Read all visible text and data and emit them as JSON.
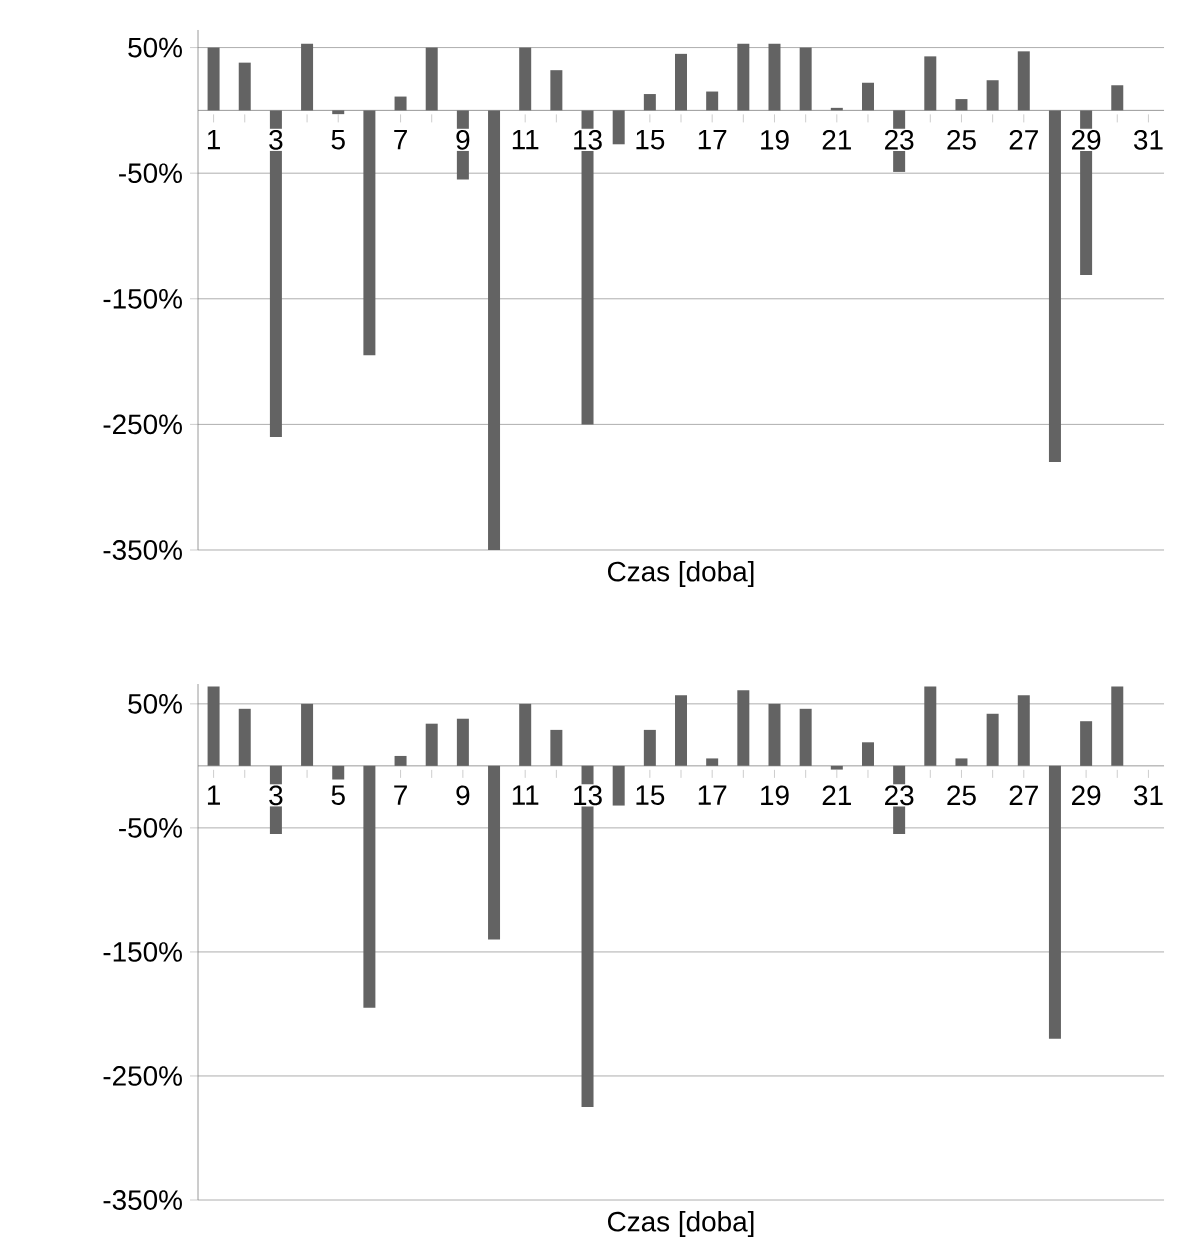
{
  "chart_data": [
    {
      "type": "bar",
      "xlabel": "Czas [doba]",
      "categories": [
        "1",
        null,
        "3",
        null,
        "5",
        null,
        "7",
        null,
        "9",
        null,
        "11",
        null,
        "13",
        null,
        "15",
        null,
        "17",
        null,
        "19",
        null,
        "21",
        null,
        "23",
        null,
        "25",
        null,
        "27",
        null,
        "29",
        null,
        "31"
      ],
      "values": [
        50,
        38,
        -260,
        53,
        -3,
        -195,
        11,
        50,
        -55,
        -350,
        50,
        32,
        -250,
        -27,
        13,
        45,
        15,
        53,
        53,
        50,
        2,
        22,
        -49,
        43,
        9,
        24,
        47,
        -280,
        -131,
        20,
        0
      ],
      "color": "#636363",
      "ylim": [
        -350,
        64
      ],
      "yticks": [
        {
          "value": -350,
          "label": "-350%"
        },
        {
          "value": -250,
          "label": "-250%"
        },
        {
          "value": -150,
          "label": "-150%"
        },
        {
          "value": -50,
          "label": "-50%"
        },
        {
          "value": 50,
          "label": "50%"
        }
      ],
      "grid": "y"
    },
    {
      "type": "bar",
      "xlabel": "Czas [doba]",
      "categories": [
        "1",
        null,
        "3",
        null,
        "5",
        null,
        "7",
        null,
        "9",
        null,
        "11",
        null,
        "13",
        null,
        "15",
        null,
        "17",
        null,
        "19",
        null,
        "21",
        null,
        "23",
        null,
        "25",
        null,
        "27",
        null,
        "29",
        null,
        "31"
      ],
      "values": [
        64,
        46,
        -55,
        50,
        -11,
        -195,
        8,
        34,
        38,
        -140,
        50,
        29,
        -275,
        -32,
        29,
        57,
        6,
        61,
        50,
        46,
        -3,
        19,
        -55,
        64,
        6,
        42,
        57,
        -220,
        36,
        64,
        0
      ],
      "color": "#636363",
      "ylim": [
        -350,
        66
      ],
      "yticks": [
        {
          "value": -350,
          "label": "-350%"
        },
        {
          "value": -250,
          "label": "-250%"
        },
        {
          "value": -150,
          "label": "-150%"
        },
        {
          "value": -50,
          "label": "-50%"
        },
        {
          "value": 50,
          "label": "50%"
        }
      ],
      "grid": "y"
    }
  ]
}
